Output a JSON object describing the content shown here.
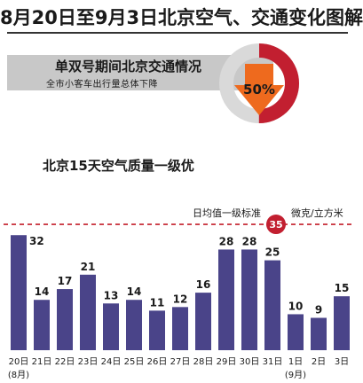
{
  "title": "8月20日至9月3日北京空气、交通变化图解",
  "traffic": {
    "heading": "单双号期间北京交通情况",
    "subtext": "全市小客车出行量总体下降",
    "decline_percent": 50,
    "decline_label": "50%"
  },
  "colors": {
    "bar": "#4a4489",
    "accent_red": "#c21f30",
    "standard_line": "#c41f2a",
    "gray_band": "#c8c8c8",
    "donut_gray": "#d9d9d9",
    "arrow_orange": "#ee6a1e"
  },
  "chart_data": {
    "type": "bar",
    "title": "北京15天空气质量一级优",
    "categories": [
      "20日",
      "21日",
      "22日",
      "23日",
      "24日",
      "25日",
      "26日",
      "27日",
      "28日",
      "29日",
      "30日",
      "31日",
      "1日",
      "2日",
      "3日"
    ],
    "values": [
      32,
      14,
      17,
      21,
      13,
      14,
      11,
      12,
      16,
      28,
      28,
      25,
      10,
      9,
      15
    ],
    "value_labels": [
      "32",
      "14",
      "17",
      "21",
      "13",
      "14",
      "11",
      "12",
      "16",
      "28",
      "28",
      "25",
      "10",
      "9",
      "15"
    ],
    "month_labels": [
      {
        "category_index": 0,
        "text": "(8月)"
      },
      {
        "category_index": 12,
        "text": "(9月)"
      }
    ],
    "reference_line": {
      "value": 35,
      "value_label": "35",
      "label": "日均值一级标准",
      "unit": "微克/立方米"
    },
    "ylim": [
      0,
      36
    ],
    "grid": false,
    "legend": "none"
  }
}
